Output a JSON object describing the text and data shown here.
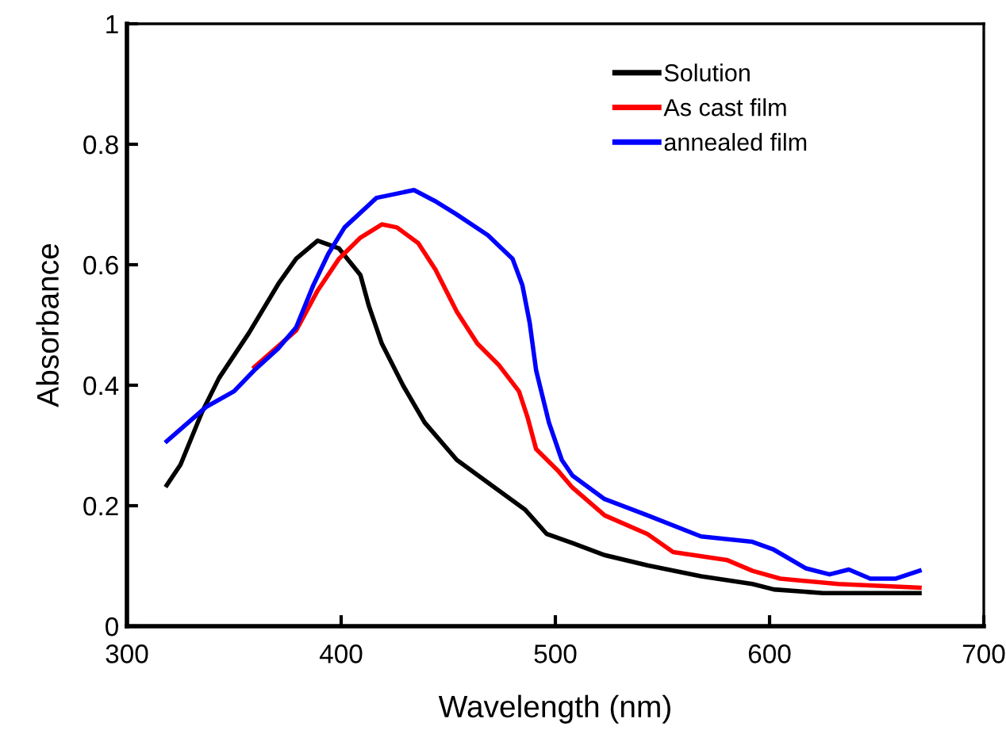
{
  "chart_data": {
    "type": "line",
    "xlabel": "Wavelength (nm)",
    "ylabel": "Absorbance",
    "xlim": [
      300,
      700
    ],
    "xticks": [
      300,
      400,
      500,
      600,
      700
    ],
    "ylim": [
      0,
      1
    ],
    "yticks": [
      0,
      0.2,
      0.4,
      0.6,
      0.8,
      1
    ],
    "grid": false,
    "legend": "top right",
    "marker": "none",
    "line_style": "solid",
    "series": [
      {
        "name": "Solution",
        "color": "#000000",
        "x": [
          318.6,
          325,
          335,
          343,
          357,
          371,
          379,
          389,
          399,
          409,
          413,
          419,
          429,
          439,
          454,
          471,
          486,
          496,
          508,
          523,
          543,
          568,
          592,
          602,
          625,
          670
        ],
        "values": [
          0.234,
          0.268,
          0.355,
          0.412,
          0.487,
          0.57,
          0.61,
          0.64,
          0.627,
          0.583,
          0.531,
          0.469,
          0.399,
          0.338,
          0.276,
          0.232,
          0.193,
          0.153,
          0.138,
          0.118,
          0.101,
          0.083,
          0.07,
          0.061,
          0.055,
          0.055
        ]
      },
      {
        "name": "As cast film",
        "color": "#ff0000",
        "x": [
          359.5,
          379,
          389,
          399,
          409,
          419,
          426,
          436,
          444,
          454,
          463.6,
          473.5,
          483,
          487,
          491,
          501,
          508,
          523,
          543,
          555,
          580,
          592,
          605,
          632,
          670
        ],
        "values": [
          0.43,
          0.491,
          0.557,
          0.61,
          0.645,
          0.667,
          0.662,
          0.636,
          0.592,
          0.522,
          0.469,
          0.434,
          0.39,
          0.347,
          0.294,
          0.259,
          0.23,
          0.184,
          0.153,
          0.123,
          0.11,
          0.092,
          0.079,
          0.07,
          0.064
        ]
      },
      {
        "name": "annealed film",
        "color": "#0000ff",
        "x": [
          318.6,
          337,
          350,
          359.5,
          370.6,
          379,
          387,
          394,
          401.6,
          416.5,
          434,
          443.7,
          453.7,
          468.5,
          480,
          484.6,
          488,
          491,
          497,
          503,
          508,
          523,
          543,
          568,
          592,
          602,
          617,
          628,
          637,
          647,
          659,
          670
        ],
        "values": [
          0.307,
          0.364,
          0.39,
          0.425,
          0.461,
          0.496,
          0.566,
          0.618,
          0.662,
          0.711,
          0.724,
          0.706,
          0.684,
          0.649,
          0.61,
          0.566,
          0.504,
          0.425,
          0.338,
          0.276,
          0.25,
          0.211,
          0.184,
          0.149,
          0.14,
          0.127,
          0.096,
          0.086,
          0.094,
          0.079,
          0.079,
          0.092
        ]
      }
    ]
  }
}
